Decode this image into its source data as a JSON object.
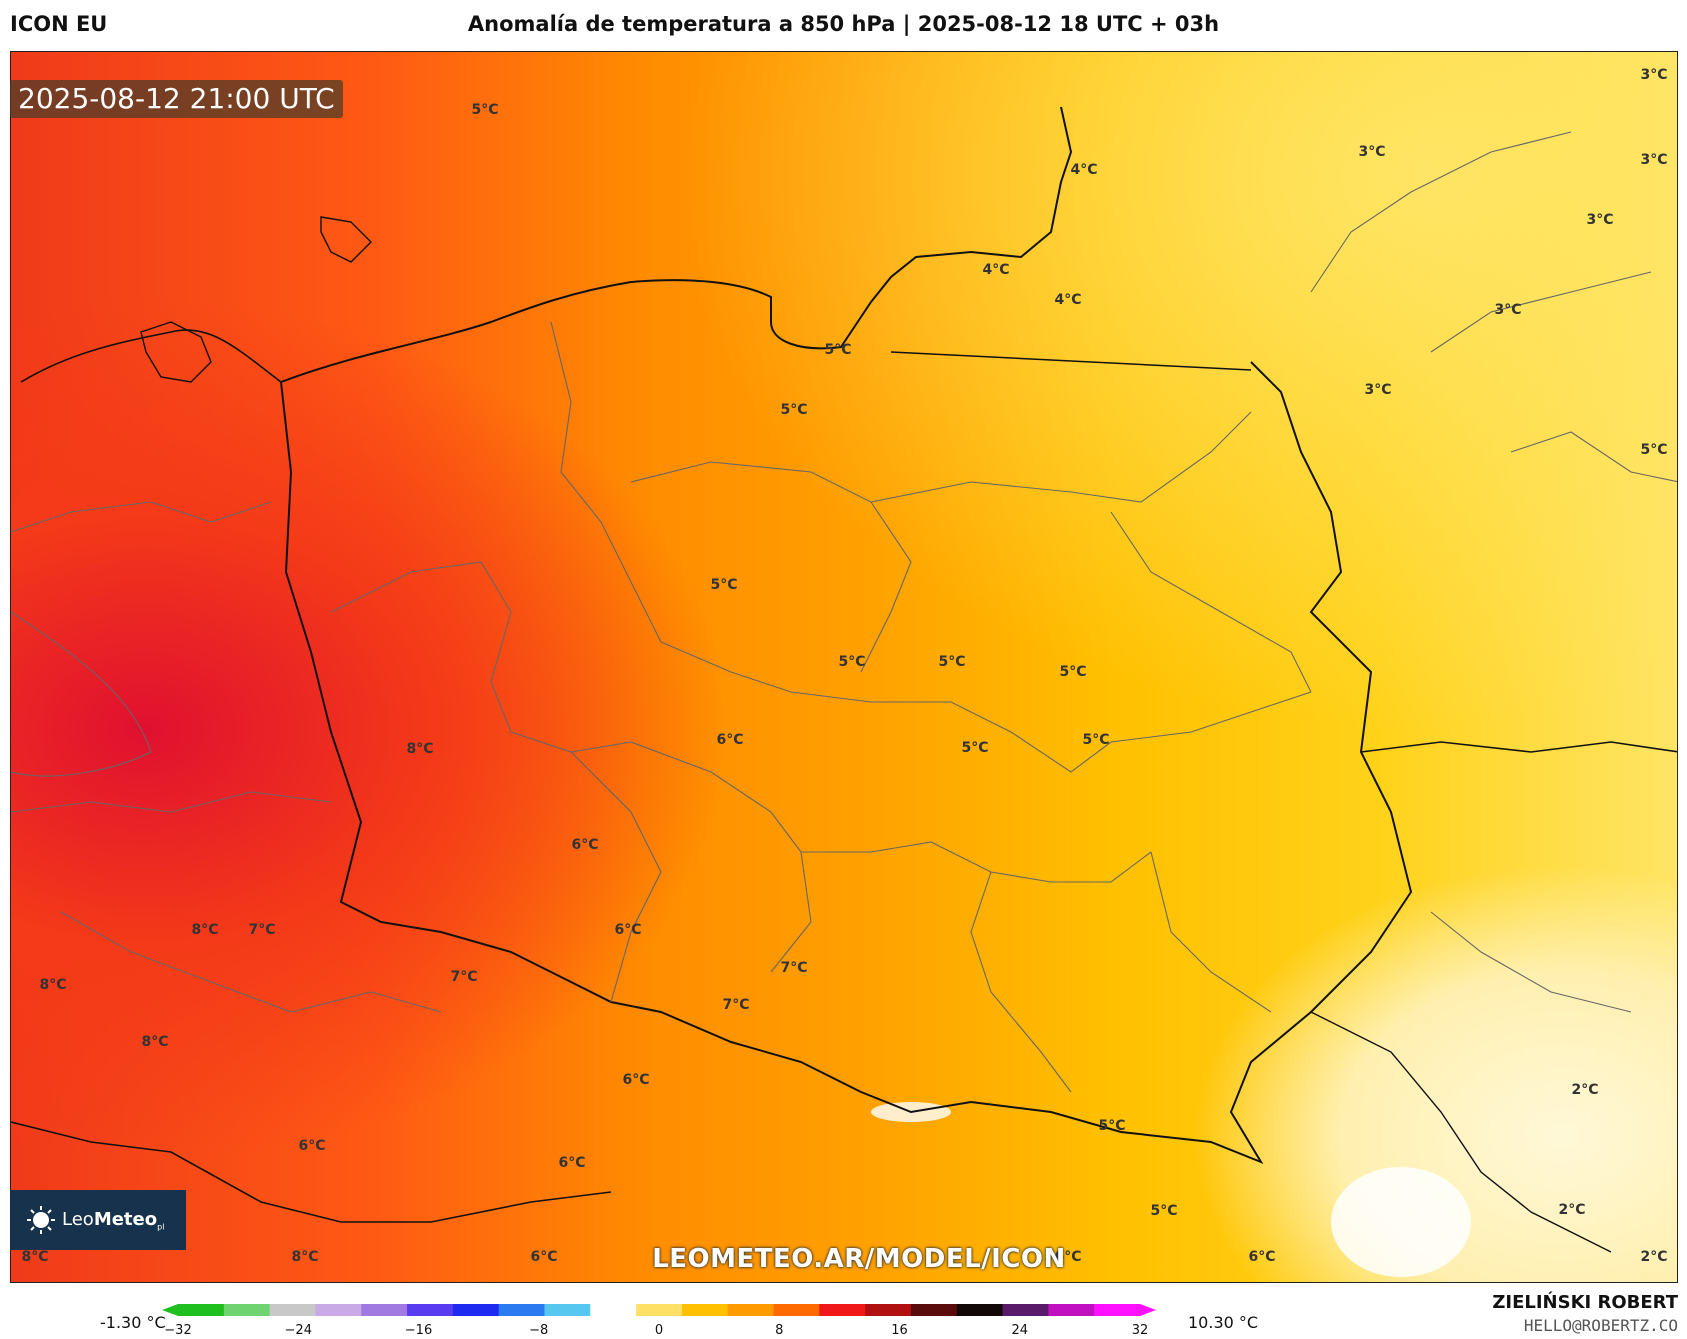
{
  "header": {
    "model": "ICON EU",
    "title": "Anomalía de temperatura a 850 hPa | 2025-08-12 18 UTC + 03h"
  },
  "map": {
    "timestamp": "2025-08-12 21:00 UTC",
    "watermark": "LEOMETEO.AR/MODEL/ICON",
    "logo": {
      "name": "Leo",
      "name_bold": "Meteo",
      "suffix": "pl"
    },
    "temperature_labels": [
      "5°C",
      "3°C",
      "3°C",
      "4°C",
      "3°C",
      "4°C",
      "4°C",
      "3°C",
      "5°C",
      "5°C",
      "3°C",
      "3°C",
      "5°C",
      "5°C",
      "5°C",
      "5°C",
      "5°C",
      "6°C",
      "5°C",
      "5°C",
      "8°C",
      "6°C",
      "8°C",
      "7°C",
      "8°C",
      "6°C",
      "7°C",
      "7°C",
      "7°C",
      "8°C",
      "6°C",
      "2°C",
      "6°C",
      "6°C",
      "5°C",
      "5°C",
      "2°C",
      "8°C",
      "8°C",
      "6°C",
      "6°C",
      "6°C",
      "2°C"
    ]
  },
  "colorbar": {
    "min_value_label": "-1.30 °C",
    "max_value_label": "10.30 °C",
    "ticks": [
      "−32",
      "−24",
      "−16",
      "−8",
      "0",
      "8",
      "16",
      "24",
      "32"
    ],
    "range": [
      -32,
      32
    ],
    "colors": [
      "#1fbf1f",
      "#6fd46f",
      "#c8c8c8",
      "#c9a9e6",
      "#a07ae0",
      "#5a3cf0",
      "#1f2af0",
      "#2a7af0",
      "#56c8f0",
      "#ffffff",
      "#ffe066",
      "#ffc000",
      "#ff9a00",
      "#ff6a00",
      "#f01818",
      "#b01010",
      "#5a0b0b",
      "#120808",
      "#5a1a6a",
      "#c010c0",
      "#ff10ff"
    ]
  },
  "footer": {
    "author": "ZIELIŃSKI ROBERT",
    "email": "HELLO@ROBERTZ.CO"
  }
}
